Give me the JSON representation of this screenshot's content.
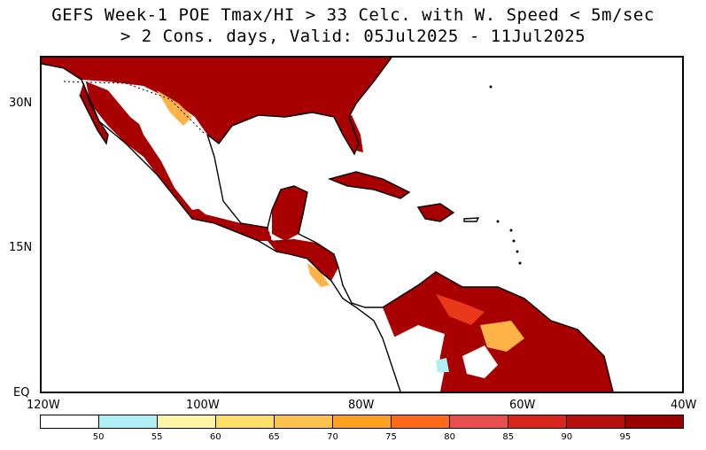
{
  "title": {
    "line1": "GEFS Week-1 POE Tmax/HI > 33 Celc. with W. Speed < 5m/sec",
    "line2": "> 2 Cons. days, Valid: 05Jul2025 - 11Jul2025"
  },
  "axes": {
    "x_ticks": [
      "120W",
      "100W",
      "80W",
      "60W",
      "40W"
    ],
    "y_ticks": [
      "30N",
      "15N",
      "EQ"
    ]
  },
  "legend": {
    "colors": [
      "#ffffff",
      "#aeeef4",
      "#fff5a8",
      "#ffe066",
      "#ffc24d",
      "#ffa020",
      "#ff6a1a",
      "#e84e4e",
      "#d9261c",
      "#b80e0e",
      "#9b0000"
    ],
    "labels": [
      "50",
      "55",
      "60",
      "65",
      "70",
      "75",
      "80",
      "85",
      "90",
      "95"
    ]
  },
  "colors": {
    "high_prob": "#a80000",
    "mid_prob": "#e83a1a",
    "low_prob": "#ffb347",
    "land_outline": "#000000"
  }
}
